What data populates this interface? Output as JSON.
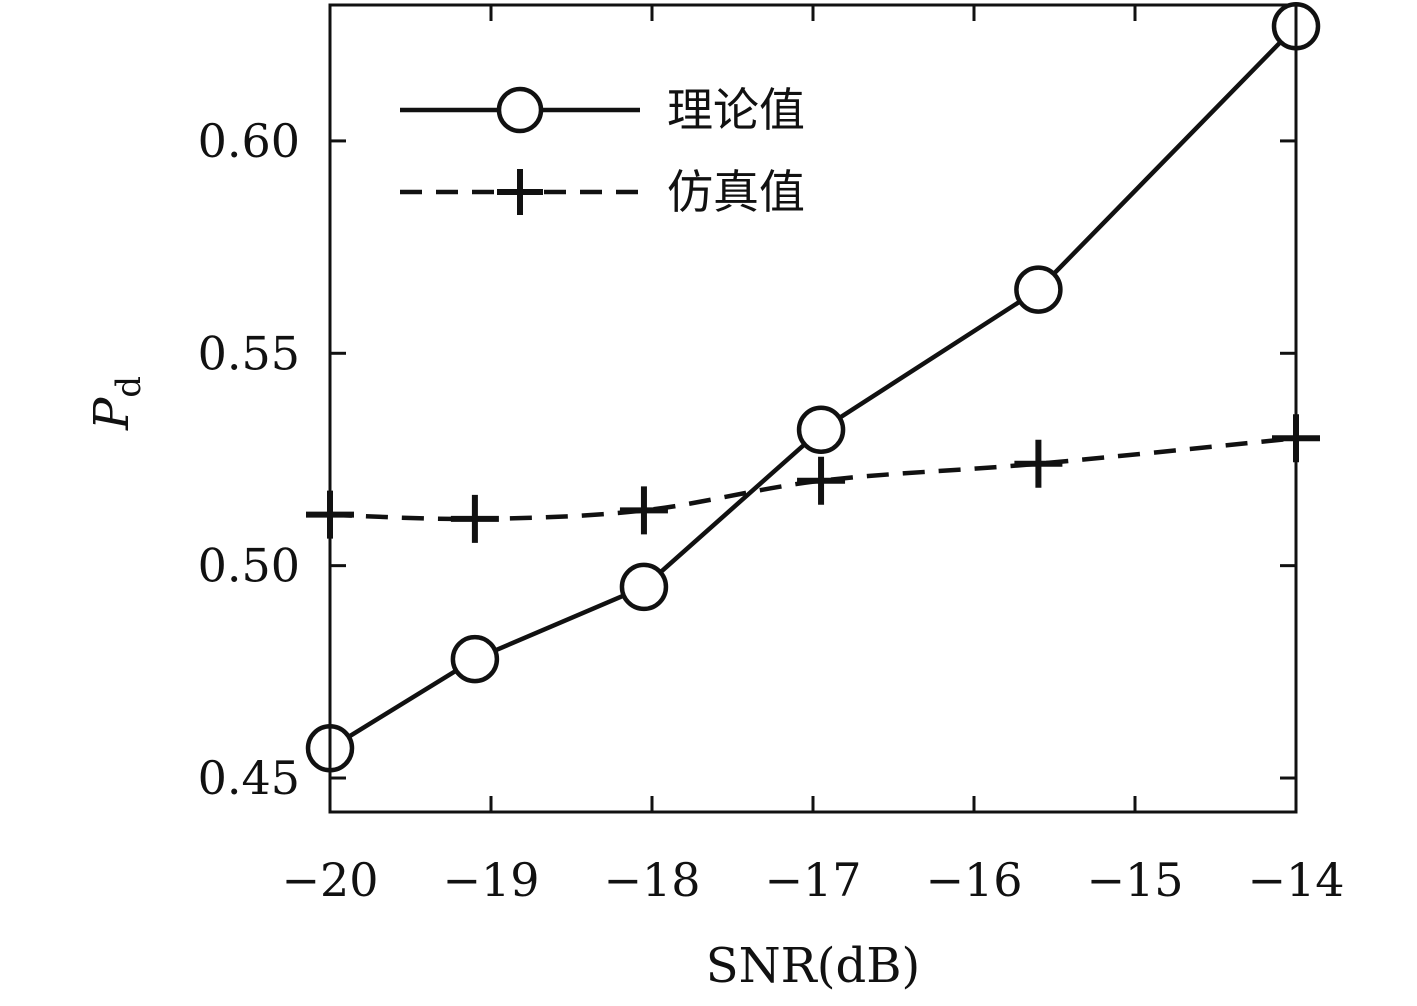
{
  "chart_data": {
    "type": "line",
    "xlabel": "SNR(dB)",
    "ylabel": "P",
    "ylabel_subscript": "d",
    "xlim": [
      -20,
      -14
    ],
    "ylim": [
      0.442,
      0.632
    ],
    "x_ticks": [
      -20,
      -19,
      -18,
      -17,
      -16,
      -15,
      -14
    ],
    "x_tick_labels": [
      "−20",
      "−19",
      "−18",
      "−17",
      "−16",
      "−15",
      "−14"
    ],
    "y_ticks": [
      0.45,
      0.5,
      0.55,
      0.6
    ],
    "y_tick_labels": [
      "0.45",
      "0.50",
      "0.55",
      "0.60"
    ],
    "grid": false,
    "legend_position": "top-left",
    "series": [
      {
        "name": "理论值",
        "line_style": "solid",
        "marker": "circle",
        "color": "#111111",
        "x": [
          -20,
          -19.1,
          -18.05,
          -16.95,
          -15.6,
          -14
        ],
        "y": [
          0.457,
          0.478,
          0.495,
          0.532,
          0.565,
          0.627
        ]
      },
      {
        "name": "仿真值",
        "line_style": "dashed",
        "marker": "plus",
        "color": "#111111",
        "x": [
          -20,
          -19.1,
          -18.05,
          -16.95,
          -15.6,
          -14
        ],
        "y": [
          0.512,
          0.511,
          0.513,
          0.52,
          0.524,
          0.53
        ]
      }
    ]
  }
}
